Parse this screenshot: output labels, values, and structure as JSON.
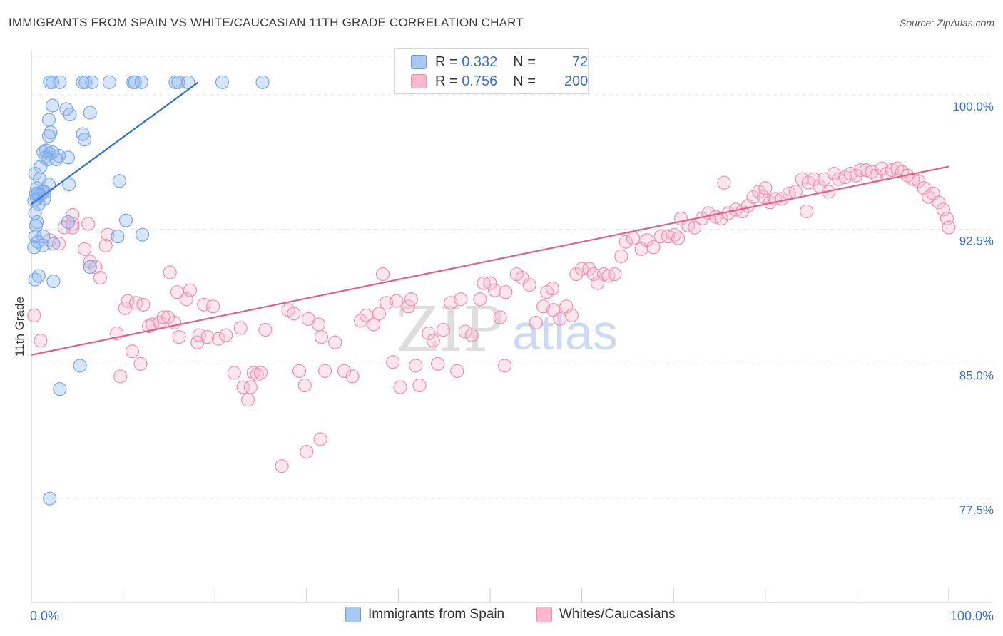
{
  "title": "IMMIGRANTS FROM SPAIN VS WHITE/CAUCASIAN 11TH GRADE CORRELATION CHART",
  "source": "Source: ZipAtlas.com",
  "watermark": {
    "zip": "ZIP",
    "atlas": "atlas"
  },
  "legend": {
    "rows": [
      {
        "r_label": "R = ",
        "r_value": "0.332",
        "n_label": "N = ",
        "n_value": "72",
        "color": "#a9c8f2",
        "border": "#6b9be0"
      },
      {
        "r_label": "R = ",
        "r_value": "0.756",
        "n_label": "N = ",
        "n_value": "200",
        "color": "#f8b9cc",
        "border": "#ee8fae"
      }
    ]
  },
  "bottom_legend": [
    {
      "label": "Immigrants from Spain",
      "color": "#a9c8f2",
      "border": "#6b9be0"
    },
    {
      "label": "Whites/Caucasians",
      "color": "#f8b9cc",
      "border": "#ee8fae"
    }
  ],
  "chart_data": {
    "type": "scatter",
    "ylabel": "11th Grade",
    "xlim": [
      0,
      100
    ],
    "ylim": [
      71.7,
      102.5
    ],
    "x_tick_labels": {
      "left": "0.0%",
      "right": "100.0%"
    },
    "y_ticks": [
      {
        "value": 100.0,
        "label": "100.0%"
      },
      {
        "value": 92.5,
        "label": "92.5%"
      },
      {
        "value": 85.0,
        "label": "85.0%"
      },
      {
        "value": 77.5,
        "label": "77.5%"
      }
    ],
    "series": [
      {
        "name": "Immigrants from Spain",
        "color": "#7aa7e6",
        "fill": "rgba(140,180,240,0.35)",
        "line_color": "#2f6fd0",
        "trend": {
          "x": [
            0.0,
            18.2
          ],
          "y": [
            93.9,
            100.7
          ]
        },
        "points": [
          [
            2.0,
            100.7
          ],
          [
            2.3,
            100.7
          ],
          [
            3.1,
            100.7
          ],
          [
            5.6,
            100.7
          ],
          [
            5.9,
            100.7
          ],
          [
            6.6,
            100.7
          ],
          [
            8.5,
            100.7
          ],
          [
            11.1,
            100.7
          ],
          [
            11.3,
            100.7
          ],
          [
            12.0,
            100.7
          ],
          [
            15.7,
            100.7
          ],
          [
            16.0,
            100.7
          ],
          [
            17.1,
            100.7
          ],
          [
            20.8,
            100.7
          ],
          [
            25.2,
            100.7
          ],
          [
            2.3,
            99.4
          ],
          [
            3.8,
            99.2
          ],
          [
            4.2,
            98.9
          ],
          [
            6.4,
            99.0
          ],
          [
            1.9,
            98.6
          ],
          [
            2.1,
            97.9
          ],
          [
            5.6,
            97.8
          ],
          [
            1.9,
            97.7
          ],
          [
            5.8,
            97.5
          ],
          [
            1.6,
            96.9
          ],
          [
            1.3,
            96.8
          ],
          [
            2.3,
            96.8
          ],
          [
            2.0,
            96.7
          ],
          [
            3.0,
            96.6
          ],
          [
            1.5,
            96.5
          ],
          [
            4.0,
            96.5
          ],
          [
            1.8,
            96.4
          ],
          [
            2.7,
            96.4
          ],
          [
            1.0,
            96.0
          ],
          [
            0.4,
            95.6
          ],
          [
            0.9,
            95.3
          ],
          [
            1.9,
            95.0
          ],
          [
            4.1,
            95.0
          ],
          [
            0.6,
            94.8
          ],
          [
            1.4,
            94.6
          ],
          [
            1.2,
            94.6
          ],
          [
            0.7,
            94.5
          ],
          [
            0.5,
            94.5
          ],
          [
            0.9,
            94.4
          ],
          [
            0.6,
            94.2
          ],
          [
            1.4,
            94.2
          ],
          [
            0.3,
            94.1
          ],
          [
            0.8,
            93.9
          ],
          [
            9.6,
            95.2
          ],
          [
            0.4,
            93.4
          ],
          [
            0.6,
            92.9
          ],
          [
            0.5,
            92.7
          ],
          [
            4.0,
            92.9
          ],
          [
            10.3,
            93.0
          ],
          [
            0.4,
            92.1
          ],
          [
            1.3,
            92.1
          ],
          [
            0.7,
            91.8
          ],
          [
            1.2,
            91.6
          ],
          [
            0.3,
            91.5
          ],
          [
            2.4,
            91.7
          ],
          [
            9.4,
            92.1
          ],
          [
            12.1,
            92.2
          ],
          [
            6.4,
            90.4
          ],
          [
            0.8,
            89.9
          ],
          [
            0.4,
            89.7
          ],
          [
            2.4,
            89.6
          ],
          [
            5.3,
            84.9
          ],
          [
            3.1,
            83.6
          ],
          [
            2.0,
            77.5
          ]
        ]
      },
      {
        "name": "Whites/Caucasians",
        "color": "#ee8fae",
        "fill": "rgba(248,185,204,0.35)",
        "line_color": "#e2608c",
        "trend": {
          "x": [
            0.0,
            100.0
          ],
          "y": [
            85.5,
            96.0
          ]
        },
        "points": [
          [
            0.3,
            87.7
          ],
          [
            1.0,
            86.3
          ],
          [
            2.0,
            91.9
          ],
          [
            3.0,
            91.7
          ],
          [
            3.6,
            92.6
          ],
          [
            4.5,
            92.6
          ],
          [
            4.5,
            92.8
          ],
          [
            4.5,
            93.3
          ],
          [
            5.8,
            91.4
          ],
          [
            6.2,
            92.8
          ],
          [
            6.4,
            90.7
          ],
          [
            7.0,
            90.4
          ],
          [
            7.5,
            89.8
          ],
          [
            8.1,
            91.6
          ],
          [
            8.3,
            92.2
          ],
          [
            9.3,
            86.7
          ],
          [
            9.7,
            84.3
          ],
          [
            10.2,
            88.1
          ],
          [
            10.5,
            88.5
          ],
          [
            11.0,
            85.7
          ],
          [
            11.4,
            88.4
          ],
          [
            11.9,
            85.0
          ],
          [
            12.2,
            88.3
          ],
          [
            12.8,
            87.1
          ],
          [
            13.2,
            87.2
          ],
          [
            14.0,
            87.3
          ],
          [
            14.4,
            87.6
          ],
          [
            14.9,
            87.6
          ],
          [
            15.1,
            90.1
          ],
          [
            15.6,
            87.3
          ],
          [
            15.9,
            89.0
          ],
          [
            16.1,
            86.5
          ],
          [
            16.9,
            88.6
          ],
          [
            17.3,
            89.1
          ],
          [
            18.1,
            86.2
          ],
          [
            18.3,
            86.6
          ],
          [
            18.8,
            88.3
          ],
          [
            19.2,
            86.5
          ],
          [
            19.8,
            88.2
          ],
          [
            20.4,
            86.4
          ],
          [
            21.2,
            86.6
          ],
          [
            22.1,
            84.5
          ],
          [
            22.8,
            87.0
          ],
          [
            23.1,
            83.7
          ],
          [
            23.6,
            83.0
          ],
          [
            23.9,
            83.7
          ],
          [
            24.2,
            84.5
          ],
          [
            24.6,
            84.4
          ],
          [
            25.0,
            84.5
          ],
          [
            25.5,
            86.9
          ],
          [
            28.0,
            88.0
          ],
          [
            28.6,
            87.8
          ],
          [
            29.2,
            84.6
          ],
          [
            29.8,
            83.8
          ],
          [
            30.2,
            87.5
          ],
          [
            31.3,
            87.2
          ],
          [
            31.6,
            86.5
          ],
          [
            32.0,
            84.6
          ],
          [
            33.1,
            86.2
          ],
          [
            34.1,
            84.6
          ],
          [
            35.0,
            84.3
          ],
          [
            35.9,
            87.4
          ],
          [
            36.5,
            87.7
          ],
          [
            37.3,
            87.2
          ],
          [
            37.9,
            87.8
          ],
          [
            38.3,
            90.0
          ],
          [
            38.7,
            88.4
          ],
          [
            39.4,
            85.1
          ],
          [
            39.8,
            88.5
          ],
          [
            40.2,
            83.7
          ],
          [
            41.1,
            88.2
          ],
          [
            41.4,
            88.6
          ],
          [
            41.9,
            84.9
          ],
          [
            42.3,
            83.8
          ],
          [
            43.3,
            86.7
          ],
          [
            43.8,
            86.3
          ],
          [
            44.3,
            85.0
          ],
          [
            44.9,
            86.9
          ],
          [
            45.7,
            88.4
          ],
          [
            46.4,
            84.6
          ],
          [
            46.8,
            88.6
          ],
          [
            47.3,
            86.8
          ],
          [
            48.0,
            86.6
          ],
          [
            48.9,
            88.6
          ],
          [
            49.3,
            89.5
          ],
          [
            50.0,
            89.5
          ],
          [
            50.5,
            89.1
          ],
          [
            51.1,
            87.6
          ],
          [
            51.6,
            84.9
          ],
          [
            51.7,
            89.0
          ],
          [
            52.9,
            90.0
          ],
          [
            53.5,
            89.8
          ],
          [
            54.3,
            89.4
          ],
          [
            55.0,
            87.3
          ],
          [
            55.8,
            88.2
          ],
          [
            56.2,
            89.0
          ],
          [
            56.8,
            89.2
          ],
          [
            56.9,
            88.0
          ],
          [
            57.6,
            87.5
          ],
          [
            58.3,
            88.2
          ],
          [
            58.9,
            87.7
          ],
          [
            59.4,
            90.0
          ],
          [
            60.0,
            90.3
          ],
          [
            60.8,
            90.3
          ],
          [
            61.3,
            90.0
          ],
          [
            61.7,
            89.5
          ],
          [
            62.4,
            90.0
          ],
          [
            62.9,
            89.9
          ],
          [
            63.6,
            90.0
          ],
          [
            64.3,
            91.0
          ],
          [
            64.8,
            91.8
          ],
          [
            65.6,
            92.0
          ],
          [
            66.5,
            91.4
          ],
          [
            67.1,
            91.9
          ],
          [
            67.8,
            91.5
          ],
          [
            68.6,
            92.1
          ],
          [
            69.4,
            92.1
          ],
          [
            70.1,
            92.2
          ],
          [
            70.8,
            93.1
          ],
          [
            71.6,
            92.7
          ],
          [
            72.3,
            92.6
          ],
          [
            73.1,
            93.1
          ],
          [
            73.8,
            93.4
          ],
          [
            74.6,
            93.2
          ],
          [
            75.2,
            93.1
          ],
          [
            76.0,
            93.4
          ],
          [
            76.8,
            93.6
          ],
          [
            77.5,
            93.5
          ],
          [
            78.1,
            93.8
          ],
          [
            78.7,
            94.3
          ],
          [
            79.3,
            94.6
          ],
          [
            79.8,
            94.3
          ],
          [
            80.5,
            94.0
          ],
          [
            81.1,
            94.2
          ],
          [
            81.8,
            94.2
          ],
          [
            82.6,
            94.5
          ],
          [
            83.3,
            94.6
          ],
          [
            84.0,
            95.3
          ],
          [
            84.7,
            95.1
          ],
          [
            85.3,
            95.3
          ],
          [
            85.9,
            94.9
          ],
          [
            86.4,
            95.3
          ],
          [
            86.9,
            94.6
          ],
          [
            87.5,
            95.6
          ],
          [
            88.0,
            95.3
          ],
          [
            88.7,
            95.4
          ],
          [
            89.3,
            95.6
          ],
          [
            89.9,
            95.5
          ],
          [
            90.4,
            95.8
          ],
          [
            91.0,
            95.8
          ],
          [
            91.6,
            95.7
          ],
          [
            92.1,
            95.5
          ],
          [
            92.7,
            95.9
          ],
          [
            93.2,
            95.6
          ],
          [
            93.8,
            95.8
          ],
          [
            94.4,
            95.9
          ],
          [
            94.9,
            95.7
          ],
          [
            95.5,
            95.5
          ],
          [
            96.1,
            95.3
          ],
          [
            96.7,
            95.2
          ],
          [
            97.3,
            94.8
          ],
          [
            97.8,
            94.3
          ],
          [
            98.3,
            94.5
          ],
          [
            98.9,
            94.0
          ],
          [
            99.4,
            93.6
          ],
          [
            99.8,
            93.1
          ],
          [
            100.0,
            92.6
          ],
          [
            27.3,
            79.3
          ],
          [
            30.0,
            80.1
          ],
          [
            31.5,
            80.8
          ],
          [
            75.5,
            95.1
          ],
          [
            80.0,
            94.8
          ],
          [
            84.5,
            93.5
          ],
          [
            70.5,
            92.0
          ]
        ]
      }
    ]
  }
}
